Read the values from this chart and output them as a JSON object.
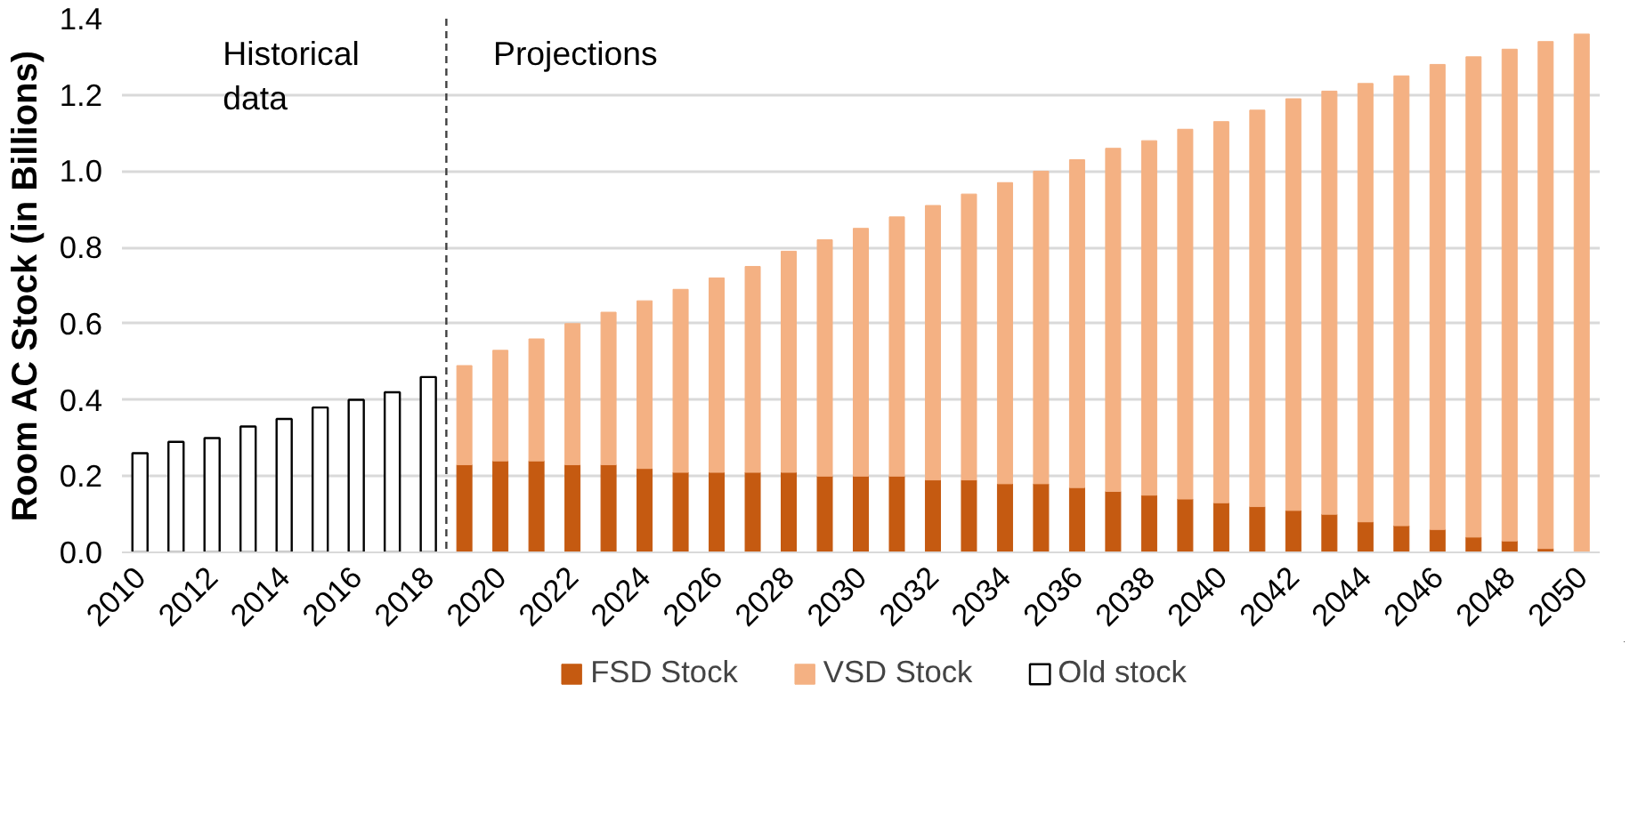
{
  "chart_data": {
    "type": "bar",
    "stacked": true,
    "ylabel": "Room AC Stock (in Billions)",
    "x": [
      2010,
      2011,
      2012,
      2013,
      2014,
      2015,
      2016,
      2017,
      2018,
      2019,
      2020,
      2021,
      2022,
      2023,
      2024,
      2025,
      2026,
      2027,
      2028,
      2029,
      2030,
      2031,
      2032,
      2033,
      2034,
      2035,
      2036,
      2037,
      2038,
      2039,
      2040,
      2041,
      2042,
      2043,
      2044,
      2045,
      2046,
      2047,
      2048,
      2049,
      2050
    ],
    "xlim": [
      2009.5,
      2050.5
    ],
    "xticks": [
      2010,
      2012,
      2014,
      2016,
      2018,
      2020,
      2022,
      2024,
      2026,
      2028,
      2030,
      2032,
      2034,
      2036,
      2038,
      2040,
      2042,
      2044,
      2046,
      2048,
      2050
    ],
    "ylim": [
      0,
      1.4
    ],
    "yticks": [
      {
        "value": 0,
        "label": "0.0"
      },
      0.2,
      0.4,
      0.6,
      0.8,
      {
        "value": 1,
        "label": "1.0"
      },
      1.2,
      1.4
    ],
    "series": [
      {
        "name": "FSD Stock",
        "color": "#c55a11",
        "values": [
          null,
          null,
          null,
          null,
          null,
          null,
          null,
          null,
          null,
          0.23,
          0.24,
          0.24,
          0.23,
          0.23,
          0.22,
          0.21,
          0.21,
          0.21,
          0.21,
          0.2,
          0.2,
          0.2,
          0.19,
          0.19,
          0.18,
          0.18,
          0.17,
          0.16,
          0.15,
          0.14,
          0.13,
          0.12,
          0.11,
          0.1,
          0.08,
          0.07,
          0.06,
          0.04,
          0.03,
          0.01,
          0
        ]
      },
      {
        "name": "VSD Stock",
        "color": "#f4b183",
        "values": [
          null,
          null,
          null,
          null,
          null,
          null,
          null,
          null,
          null,
          0.26,
          0.29,
          0.32,
          0.37,
          0.4,
          0.44,
          0.48,
          0.51,
          0.54,
          0.58,
          0.62,
          0.65,
          0.68,
          0.72,
          0.75,
          0.79,
          0.82,
          0.86,
          0.9,
          0.93,
          0.97,
          1.0,
          1.04,
          1.08,
          1.11,
          1.15,
          1.18,
          1.22,
          1.26,
          1.29,
          1.33,
          1.36
        ]
      },
      {
        "name": "Old stock",
        "color": "#ffffff",
        "values": [
          0.26,
          0.29,
          0.3,
          0.33,
          0.35,
          0.38,
          0.4,
          0.42,
          0.46,
          null,
          null,
          null,
          null,
          null,
          null,
          null,
          null,
          null,
          null,
          null,
          null,
          null,
          null,
          null,
          null,
          null,
          null,
          null,
          null,
          null,
          null,
          null,
          null,
          null,
          null,
          null,
          null,
          null,
          null,
          null,
          null
        ]
      }
    ],
    "ref_lines": [
      {
        "axis": "x",
        "value": 2018.5,
        "line_style": "dashed",
        "color": "#404040"
      }
    ],
    "annotations": [
      "Historical\ndata",
      "Projections"
    ],
    "grid": "y",
    "legend": "bottom"
  }
}
